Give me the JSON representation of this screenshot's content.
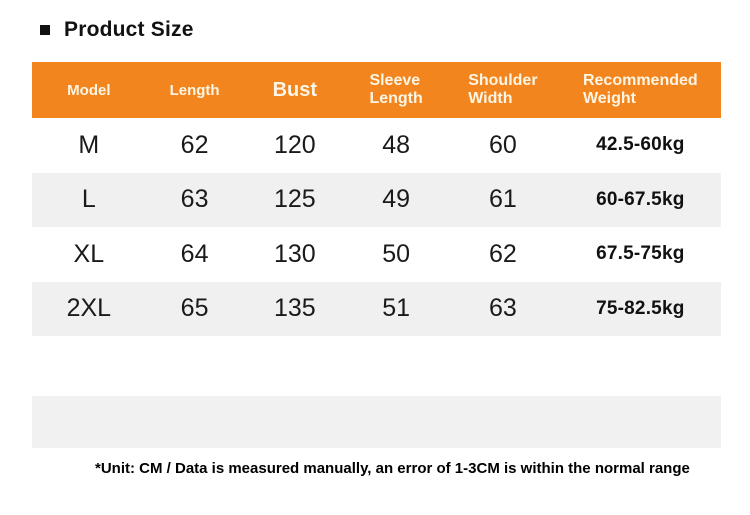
{
  "chart_data": {
    "type": "table",
    "title": "Product Size",
    "columns": [
      "Model",
      "Length",
      "Bust",
      "Sleeve Length",
      "Shoulder Width",
      "Recommended Weight"
    ],
    "rows": [
      [
        "M",
        "62",
        "120",
        "48",
        "60",
        "42.5-60kg"
      ],
      [
        "L",
        "63",
        "125",
        "49",
        "61",
        "60-67.5kg"
      ],
      [
        "XL",
        "64",
        "130",
        "50",
        "62",
        "67.5-75kg"
      ],
      [
        "2XL",
        "65",
        "135",
        "51",
        "63",
        "75-82.5kg"
      ]
    ],
    "unit_note": "*Unit: CM / Data is measured manually, an error of 1-3CM is within the normal range",
    "layout": {
      "header_position": "top",
      "row_striping": "alternate"
    }
  },
  "colors": {
    "accent_orange": "#F2851D",
    "header_text": "#FDF6E7",
    "row_alt_gray": "#F0F0F0",
    "band_gray": "#F1F1F1",
    "text_dark": "#1A1A1A"
  }
}
